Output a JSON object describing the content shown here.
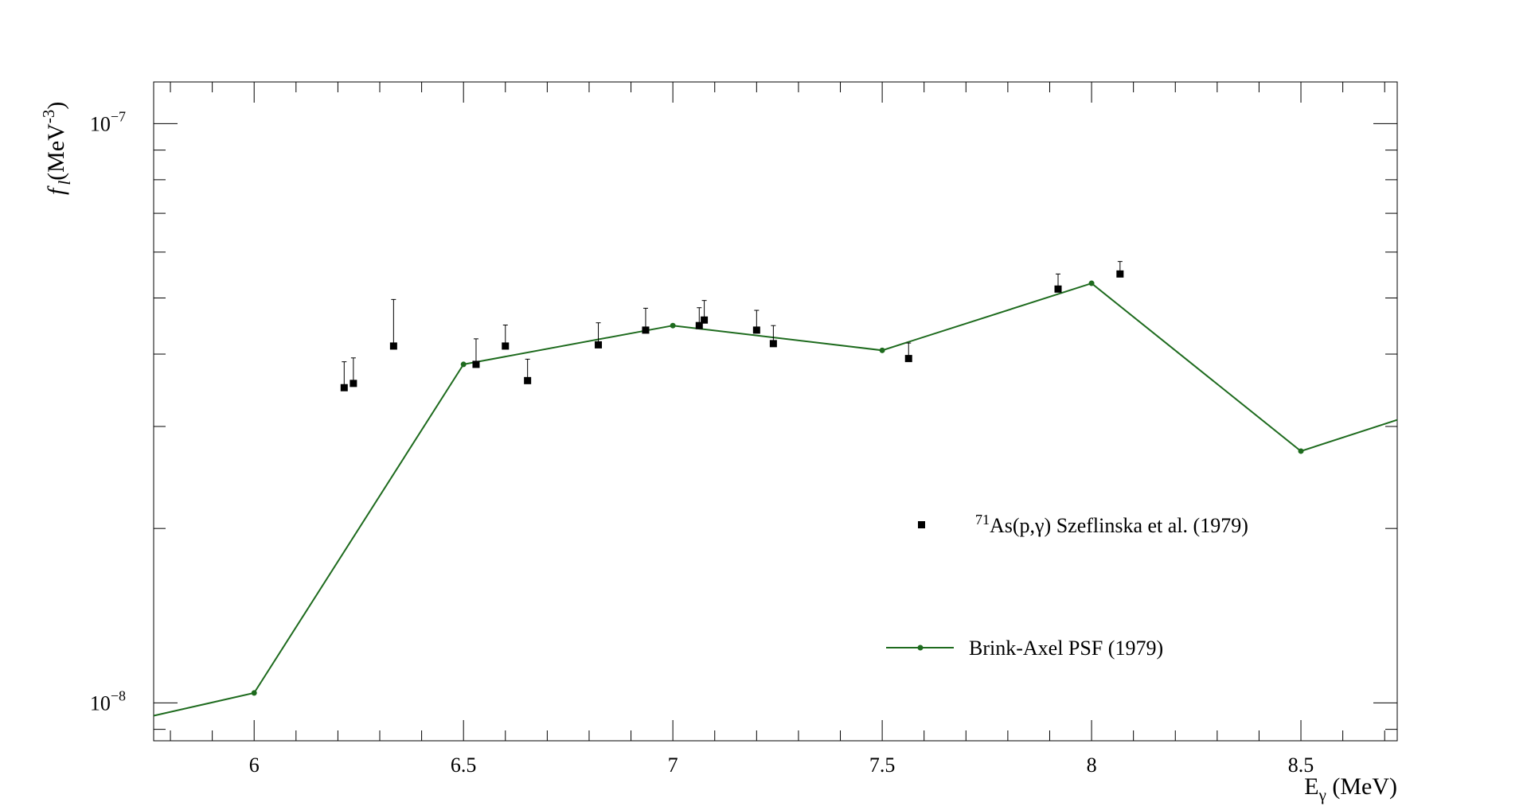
{
  "chart_data": {
    "type": "scatter",
    "title": "",
    "xlabel": "E",
    "xlabel_sub": "γ",
    "xlabel_unit": " (MeV)",
    "ylabel": "f",
    "ylabel_sub": "l",
    "ylabel_unit": "(MeV",
    "ylabel_exp": "-3",
    "ylabel_close": ")",
    "xlim": [
      5.76,
      8.73
    ],
    "ylim": [
      8.6e-09,
      1.18e-07
    ],
    "y_scale": "log",
    "grid": false,
    "legend_position": "center-right",
    "x_ticks": [
      {
        "value": 6,
        "label": "6"
      },
      {
        "value": 6.5,
        "label": "6.5"
      },
      {
        "value": 7,
        "label": "7"
      },
      {
        "value": 7.5,
        "label": "7.5"
      },
      {
        "value": 8,
        "label": "8"
      },
      {
        "value": 8.5,
        "label": "8.5"
      }
    ],
    "y_ticks": [
      {
        "value": 1e-08,
        "base": "10",
        "exp": "−8"
      },
      {
        "value": 1e-07,
        "base": "10",
        "exp": "−7"
      }
    ],
    "series": [
      {
        "name": "As(p,γ) Szeflinska et al. (1979)",
        "name_sup": "71",
        "kind": "points_with_upper_errors",
        "color": "#000000",
        "points": [
          {
            "x": 6.215,
            "y": 3.5e-08,
            "yerr_up": 3.8e-09
          },
          {
            "x": 6.237,
            "y": 3.56e-08,
            "yerr_up": 3.8e-09
          },
          {
            "x": 6.333,
            "y": 4.13e-08,
            "yerr_up": 8.4e-09
          },
          {
            "x": 6.53,
            "y": 3.84e-08,
            "yerr_up": 4.1e-09
          },
          {
            "x": 6.6,
            "y": 4.13e-08,
            "yerr_up": 3.6e-09
          },
          {
            "x": 6.653,
            "y": 3.6e-08,
            "yerr_up": 3.2e-09
          },
          {
            "x": 6.822,
            "y": 4.15e-08,
            "yerr_up": 3.8e-09
          },
          {
            "x": 6.935,
            "y": 4.4e-08,
            "yerr_up": 4e-09
          },
          {
            "x": 7.063,
            "y": 4.48e-08,
            "yerr_up": 3.3e-09
          },
          {
            "x": 7.075,
            "y": 4.58e-08,
            "yerr_up": 3.7e-09
          },
          {
            "x": 7.2,
            "y": 4.4e-08,
            "yerr_up": 3.6e-09
          },
          {
            "x": 7.24,
            "y": 4.17e-08,
            "yerr_up": 3.1e-09
          },
          {
            "x": 7.563,
            "y": 3.93e-08,
            "yerr_up": 2.5e-09
          },
          {
            "x": 7.92,
            "y": 5.18e-08,
            "yerr_up": 3.2e-09
          },
          {
            "x": 8.068,
            "y": 5.5e-08,
            "yerr_up": 2.8e-09
          }
        ]
      },
      {
        "name": "Brink-Axel PSF (1979)",
        "kind": "line_with_markers",
        "color": "#1e6b1e",
        "points": [
          {
            "x": 5.76,
            "y": 9.5e-09,
            "marker": false
          },
          {
            "x": 6.0,
            "y": 1.04e-08,
            "marker": true
          },
          {
            "x": 6.5,
            "y": 3.84e-08,
            "marker": true
          },
          {
            "x": 7.0,
            "y": 4.48e-08,
            "marker": true
          },
          {
            "x": 7.5,
            "y": 4.06e-08,
            "marker": true
          },
          {
            "x": 8.0,
            "y": 5.3e-08,
            "marker": true
          },
          {
            "x": 8.5,
            "y": 2.72e-08,
            "marker": true
          },
          {
            "x": 8.73,
            "y": 3.08e-08,
            "marker": false
          }
        ]
      }
    ]
  }
}
